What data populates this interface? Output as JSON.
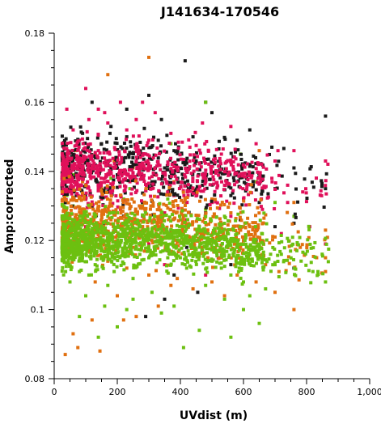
{
  "chart_data": {
    "type": "scatter",
    "title": "J141634-170546",
    "xlabel": "UVdist (m)",
    "ylabel": "Amp:corrected",
    "xlim": [
      0,
      1000
    ],
    "ylim": [
      0.08,
      0.18
    ],
    "x_ticks": [
      "0",
      "200",
      "400",
      "600",
      "800",
      "1,000"
    ],
    "y_ticks": [
      "0.08",
      "0.1",
      "0.12",
      "0.14",
      "0.16",
      "0.18"
    ],
    "grid": false,
    "legend": "none",
    "series_colors": [
      "#1a1a1a",
      "#e0105a",
      "#e07010",
      "#6cc010"
    ],
    "series": [
      {
        "color": "#1a1a1a",
        "points": [
          [
            415,
            0.172
          ],
          [
            300,
            0.162
          ],
          [
            120,
            0.16
          ],
          [
            230,
            0.158
          ],
          [
            500,
            0.157
          ],
          [
            620,
            0.152
          ],
          [
            860,
            0.156
          ],
          [
            760,
            0.141
          ],
          [
            690,
            0.147
          ],
          [
            580,
            0.149
          ],
          [
            440,
            0.15
          ],
          [
            340,
            0.155
          ],
          [
            180,
            0.153
          ],
          [
            90,
            0.151
          ],
          [
            60,
            0.146
          ],
          [
            150,
            0.148
          ],
          [
            270,
            0.145
          ],
          [
            380,
            0.146
          ],
          [
            450,
            0.143
          ],
          [
            520,
            0.14
          ],
          [
            610,
            0.138
          ],
          [
            700,
            0.135
          ],
          [
            860,
            0.135
          ],
          [
            650,
            0.131
          ],
          [
            560,
            0.133
          ],
          [
            470,
            0.136
          ],
          [
            410,
            0.139
          ],
          [
            350,
            0.141
          ],
          [
            250,
            0.142
          ],
          [
            200,
            0.139
          ],
          [
            130,
            0.144
          ],
          [
            80,
            0.141
          ],
          [
            40,
            0.138
          ],
          [
            100,
            0.136
          ],
          [
            170,
            0.134
          ],
          [
            310,
            0.137
          ],
          [
            480,
            0.128
          ],
          [
            590,
            0.126
          ],
          [
            640,
            0.12
          ],
          [
            700,
            0.124
          ],
          [
            540,
            0.121
          ],
          [
            420,
            0.118
          ],
          [
            370,
            0.123
          ],
          [
            280,
            0.131
          ],
          [
            220,
            0.127
          ],
          [
            160,
            0.125
          ],
          [
            120,
            0.13
          ],
          [
            70,
            0.133
          ],
          [
            330,
            0.149
          ],
          [
            480,
            0.16
          ],
          [
            230,
            0.15
          ],
          [
            760,
            0.112
          ],
          [
            760,
            0.125
          ],
          [
            455,
            0.105
          ],
          [
            380,
            0.11
          ],
          [
            290,
            0.098
          ],
          [
            560,
            0.113
          ],
          [
            350,
            0.103
          ]
        ]
      },
      {
        "color": "#e0105a",
        "points": [
          [
            100,
            0.164
          ],
          [
            210,
            0.16
          ],
          [
            140,
            0.158
          ],
          [
            260,
            0.155
          ],
          [
            320,
            0.157
          ],
          [
            470,
            0.154
          ],
          [
            560,
            0.153
          ],
          [
            640,
            0.148
          ],
          [
            700,
            0.143
          ],
          [
            760,
            0.146
          ],
          [
            860,
            0.143
          ],
          [
            810,
            0.124
          ],
          [
            860,
            0.119
          ],
          [
            740,
            0.131
          ],
          [
            690,
            0.138
          ],
          [
            600,
            0.142
          ],
          [
            530,
            0.145
          ],
          [
            430,
            0.147
          ],
          [
            370,
            0.151
          ],
          [
            300,
            0.149
          ],
          [
            230,
            0.152
          ],
          [
            170,
            0.154
          ],
          [
            110,
            0.155
          ],
          [
            60,
            0.152
          ],
          [
            30,
            0.147
          ],
          [
            80,
            0.149
          ],
          [
            140,
            0.146
          ],
          [
            200,
            0.144
          ],
          [
            260,
            0.143
          ],
          [
            330,
            0.142
          ],
          [
            400,
            0.141
          ],
          [
            470,
            0.139
          ],
          [
            540,
            0.136
          ],
          [
            600,
            0.132
          ],
          [
            660,
            0.129
          ],
          [
            720,
            0.122
          ],
          [
            560,
            0.127
          ],
          [
            500,
            0.131
          ],
          [
            440,
            0.134
          ],
          [
            380,
            0.133
          ],
          [
            310,
            0.135
          ],
          [
            240,
            0.137
          ],
          [
            180,
            0.14
          ],
          [
            120,
            0.141
          ],
          [
            50,
            0.143
          ],
          [
            40,
            0.135
          ],
          [
            90,
            0.133
          ],
          [
            150,
            0.132
          ],
          [
            210,
            0.129
          ],
          [
            280,
            0.127
          ],
          [
            350,
            0.128
          ],
          [
            420,
            0.126
          ],
          [
            360,
            0.117
          ],
          [
            300,
            0.119
          ],
          [
            180,
            0.122
          ],
          [
            100,
            0.124
          ],
          [
            480,
            0.11
          ],
          [
            520,
            0.115
          ],
          [
            740,
            0.136
          ],
          [
            40,
            0.158
          ],
          [
            280,
            0.16
          ],
          [
            160,
            0.157
          ],
          [
            350,
            0.113
          ]
        ]
      },
      {
        "color": "#e07010",
        "points": [
          [
            300,
            0.173
          ],
          [
            170,
            0.168
          ],
          [
            270,
            0.146
          ],
          [
            650,
            0.146
          ],
          [
            760,
            0.131
          ],
          [
            860,
            0.115
          ],
          [
            860,
            0.123
          ],
          [
            780,
            0.118
          ],
          [
            700,
            0.121
          ],
          [
            620,
            0.124
          ],
          [
            560,
            0.128
          ],
          [
            500,
            0.132
          ],
          [
            440,
            0.135
          ],
          [
            380,
            0.137
          ],
          [
            320,
            0.139
          ],
          [
            250,
            0.141
          ],
          [
            190,
            0.143
          ],
          [
            130,
            0.145
          ],
          [
            70,
            0.146
          ],
          [
            30,
            0.14
          ],
          [
            90,
            0.137
          ],
          [
            150,
            0.135
          ],
          [
            210,
            0.133
          ],
          [
            270,
            0.13
          ],
          [
            340,
            0.126
          ],
          [
            410,
            0.122
          ],
          [
            470,
            0.118
          ],
          [
            530,
            0.115
          ],
          [
            580,
            0.11
          ],
          [
            640,
            0.108
          ],
          [
            700,
            0.105
          ],
          [
            760,
            0.1
          ],
          [
            860,
            0.111
          ],
          [
            500,
            0.108
          ],
          [
            440,
            0.106
          ],
          [
            370,
            0.107
          ],
          [
            300,
            0.11
          ],
          [
            230,
            0.112
          ],
          [
            170,
            0.114
          ],
          [
            110,
            0.117
          ],
          [
            60,
            0.119
          ],
          [
            130,
            0.108
          ],
          [
            200,
            0.104
          ],
          [
            260,
            0.098
          ],
          [
            330,
            0.101
          ],
          [
            120,
            0.097
          ],
          [
            220,
            0.097
          ],
          [
            60,
            0.093
          ],
          [
            35,
            0.087
          ],
          [
            75,
            0.089
          ],
          [
            145,
            0.088
          ],
          [
            390,
            0.109
          ],
          [
            250,
            0.118
          ],
          [
            320,
            0.121
          ],
          [
            180,
            0.126
          ],
          [
            90,
            0.128
          ],
          [
            540,
            0.104
          ],
          [
            670,
            0.113
          ]
        ]
      },
      {
        "color": "#6cc010",
        "points": [
          [
            480,
            0.16
          ],
          [
            370,
            0.148
          ],
          [
            590,
            0.145
          ],
          [
            640,
            0.137
          ],
          [
            700,
            0.131
          ],
          [
            760,
            0.127
          ],
          [
            860,
            0.108
          ],
          [
            820,
            0.111
          ],
          [
            700,
            0.113
          ],
          [
            640,
            0.116
          ],
          [
            580,
            0.118
          ],
          [
            520,
            0.121
          ],
          [
            460,
            0.124
          ],
          [
            400,
            0.126
          ],
          [
            340,
            0.128
          ],
          [
            280,
            0.13
          ],
          [
            220,
            0.132
          ],
          [
            160,
            0.134
          ],
          [
            100,
            0.136
          ],
          [
            40,
            0.133
          ],
          [
            30,
            0.122
          ],
          [
            30,
            0.115
          ],
          [
            60,
            0.118
          ],
          [
            120,
            0.12
          ],
          [
            180,
            0.122
          ],
          [
            240,
            0.12
          ],
          [
            300,
            0.118
          ],
          [
            360,
            0.115
          ],
          [
            420,
            0.112
          ],
          [
            480,
            0.107
          ],
          [
            540,
            0.103
          ],
          [
            600,
            0.1
          ],
          [
            650,
            0.096
          ],
          [
            560,
            0.092
          ],
          [
            460,
            0.094
          ],
          [
            410,
            0.089
          ],
          [
            380,
            0.101
          ],
          [
            310,
            0.105
          ],
          [
            250,
            0.109
          ],
          [
            190,
            0.111
          ],
          [
            130,
            0.113
          ],
          [
            80,
            0.111
          ],
          [
            50,
            0.108
          ],
          [
            100,
            0.104
          ],
          [
            160,
            0.101
          ],
          [
            230,
            0.1
          ],
          [
            140,
            0.092
          ],
          [
            200,
            0.095
          ],
          [
            80,
            0.098
          ],
          [
            120,
            0.125
          ],
          [
            170,
            0.127
          ],
          [
            230,
            0.125
          ],
          [
            290,
            0.123
          ],
          [
            350,
            0.121
          ],
          [
            410,
            0.119
          ],
          [
            470,
            0.117
          ],
          [
            530,
            0.112
          ],
          [
            600,
            0.108
          ],
          [
            670,
            0.106
          ],
          [
            80,
            0.127
          ],
          [
            140,
            0.129
          ],
          [
            200,
            0.128
          ],
          [
            260,
            0.126
          ],
          [
            320,
            0.124
          ],
          [
            380,
            0.121
          ],
          [
            440,
            0.118
          ],
          [
            500,
            0.114
          ],
          [
            560,
            0.11
          ],
          [
            620,
            0.104
          ],
          [
            420,
            0.131
          ],
          [
            480,
            0.129
          ],
          [
            540,
            0.127
          ],
          [
            600,
            0.124
          ],
          [
            660,
            0.12
          ],
          [
            720,
            0.116
          ],
          [
            60,
            0.13
          ],
          [
            110,
            0.11
          ],
          [
            170,
            0.107
          ],
          [
            250,
            0.103
          ],
          [
            340,
            0.099
          ],
          [
            300,
            0.115
          ],
          [
            360,
            0.132
          ],
          [
            240,
            0.135
          ],
          [
            180,
            0.138
          ],
          [
            60,
            0.139
          ]
        ]
      }
    ]
  }
}
